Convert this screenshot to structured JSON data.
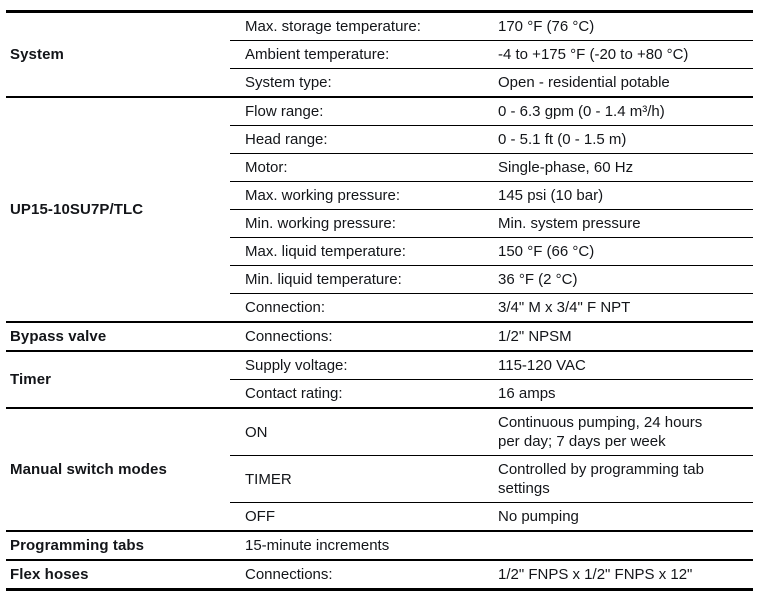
{
  "page": {
    "background": "#ffffff",
    "text_color": "#131519",
    "line_color": "#000000"
  },
  "table": {
    "sections": [
      {
        "category": "System",
        "rows": [
          {
            "label": "Max. storage temperature:",
            "value": "170 °F (76 °C)"
          },
          {
            "label": "Ambient temperature:",
            "value": "-4 to +175 °F (-20 to +80 °C)"
          },
          {
            "label": "System type:",
            "value": "Open - residential potable"
          }
        ]
      },
      {
        "category": "UP15-10SU7P/TLC",
        "rows": [
          {
            "label": "Flow range:",
            "value": "0 - 6.3 gpm (0 - 1.4 m³/h)"
          },
          {
            "label": "Head range:",
            "value": "0 - 5.1 ft (0 - 1.5 m)"
          },
          {
            "label": "Motor:",
            "value": "Single-phase, 60 Hz"
          },
          {
            "label": "Max. working pressure:",
            "value": "145 psi (10 bar)"
          },
          {
            "label": "Min. working pressure:",
            "value": "Min. system pressure"
          },
          {
            "label": "Max. liquid temperature:",
            "value": "150 °F (66 °C)"
          },
          {
            "label": "Min. liquid temperature:",
            "value": "36 °F (2 °C)"
          },
          {
            "label": "Connection:",
            "value": "3/4\" M x 3/4\" F NPT"
          }
        ]
      },
      {
        "category": "Bypass valve",
        "rows": [
          {
            "label": "Connections:",
            "value": "1/2\" NPSM"
          }
        ]
      },
      {
        "category": "Timer",
        "rows": [
          {
            "label": "Supply voltage:",
            "value": "115-120 VAC"
          },
          {
            "label": "Contact rating:",
            "value": "16 amps"
          }
        ]
      },
      {
        "category": "Manual switch modes",
        "rows": [
          {
            "label": "ON",
            "value": "Continuous pumping, 24 hours\nper day; 7 days per week"
          },
          {
            "label": "TIMER",
            "value": "Controlled by programming tab\nsettings"
          },
          {
            "label": "OFF",
            "value": "No pumping"
          }
        ]
      },
      {
        "category": "Programming tabs",
        "rows": [
          {
            "label": "15-minute increments",
            "value": ""
          }
        ]
      },
      {
        "category": "Flex hoses",
        "rows": [
          {
            "label": "Connections:",
            "value": "1/2\" FNPS x 1/2\" FNPS x 12\""
          }
        ]
      }
    ]
  }
}
